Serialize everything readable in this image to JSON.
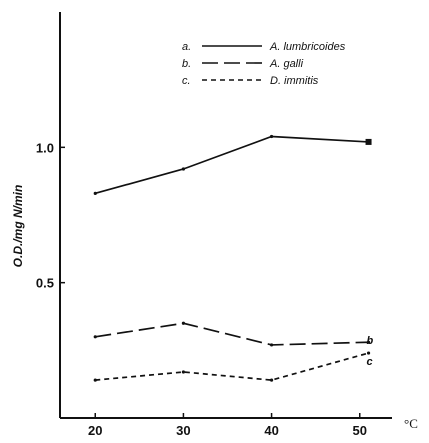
{
  "chart_data": {
    "type": "line",
    "x": [
      20,
      30,
      40,
      50
    ],
    "xticks": [
      "20",
      "30",
      "40",
      "50"
    ],
    "xunit": "°C",
    "ylabel": "O.D./mg N/min",
    "yticks": [
      "0.5",
      "1.0"
    ],
    "yticks_values": [
      0.5,
      1.0
    ],
    "xlim": [
      16,
      54
    ],
    "ylim": [
      0,
      1.5
    ],
    "grid": false,
    "legend_position": "top-right",
    "series": [
      {
        "key": "a.",
        "name": "A. lumbricoides",
        "end_label": "",
        "style": "solid",
        "x": [
          20,
          30,
          40,
          51
        ],
        "values": [
          0.83,
          0.92,
          1.04,
          1.02
        ]
      },
      {
        "key": "b.",
        "name": "A. galli",
        "end_label": "b",
        "style": "longdash",
        "x": [
          20,
          30,
          40,
          51
        ],
        "values": [
          0.3,
          0.35,
          0.27,
          0.28
        ]
      },
      {
        "key": "c.",
        "name": "D. immitis",
        "end_label": "c",
        "style": "shortdash",
        "x": [
          20,
          30,
          40,
          51
        ],
        "values": [
          0.14,
          0.17,
          0.14,
          0.24
        ]
      }
    ]
  }
}
